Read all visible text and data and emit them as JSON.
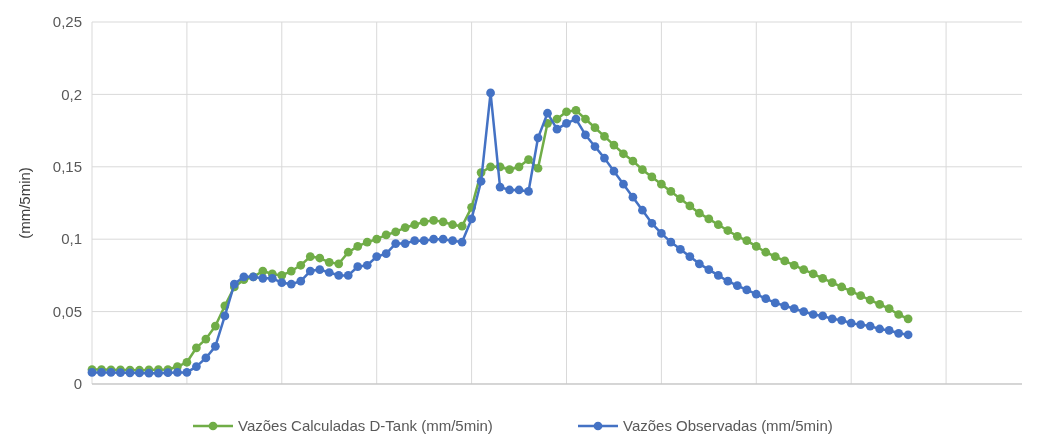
{
  "chart_data": {
    "type": "line",
    "ylabel": "(mm/5min)",
    "categories": [
      null,
      null,
      null,
      null,
      null,
      null,
      null,
      null,
      null,
      null,
      null,
      null,
      null,
      null,
      null,
      null,
      null,
      null,
      null,
      null,
      null,
      null,
      null,
      null,
      null,
      null,
      null,
      null,
      null,
      null,
      null,
      null,
      null,
      null,
      null,
      null,
      null,
      null,
      null,
      null,
      null,
      null,
      null,
      null,
      null,
      null,
      null,
      null,
      null,
      null,
      null,
      null,
      null,
      null,
      null,
      null,
      null,
      null,
      null,
      null,
      null,
      null,
      null,
      null,
      null,
      null,
      null,
      null,
      null,
      null,
      null,
      null,
      null,
      null,
      null,
      null,
      null,
      null,
      null,
      null,
      null,
      null,
      null,
      null,
      null,
      null,
      null,
      null,
      null,
      null,
      null,
      null,
      null,
      null,
      null,
      null,
      null,
      null
    ],
    "ylim": [
      0,
      0.25
    ],
    "yticks": [
      {
        "value": 0,
        "label": "0"
      },
      {
        "value": 0.05,
        "label": "0,05"
      },
      {
        "value": 0.1,
        "label": "0,1"
      },
      {
        "value": 0.15,
        "label": "0,15"
      },
      {
        "value": 0.2,
        "label": "0,2"
      },
      {
        "value": 0.25,
        "label": "0,25"
      }
    ],
    "grid": true,
    "legend": "bottom",
    "marker": "circle",
    "series": [
      {
        "name": "Vazões Calculadas D-Tank (mm/5min)",
        "color": "#70ad47",
        "values": [
          0.01,
          0.01,
          0.0098,
          0.0097,
          0.0096,
          0.0095,
          0.0097,
          0.0099,
          0.01,
          0.012,
          0.015,
          0.025,
          0.031,
          0.04,
          0.054,
          0.067,
          0.072,
          0.074,
          0.078,
          0.076,
          0.075,
          0.078,
          0.082,
          0.088,
          0.087,
          0.084,
          0.083,
          0.091,
          0.095,
          0.098,
          0.1,
          0.103,
          0.105,
          0.108,
          0.11,
          0.112,
          0.113,
          0.112,
          0.11,
          0.109,
          0.122,
          0.146,
          0.15,
          0.15,
          0.148,
          0.15,
          0.155,
          0.149,
          0.18,
          0.183,
          0.188,
          0.189,
          0.183,
          0.177,
          0.171,
          0.165,
          0.159,
          0.154,
          0.148,
          0.143,
          0.138,
          0.133,
          0.128,
          0.123,
          0.118,
          0.114,
          0.11,
          0.106,
          0.102,
          0.099,
          0.095,
          0.091,
          0.088,
          0.085,
          0.082,
          0.079,
          0.076,
          0.073,
          0.07,
          0.067,
          0.064,
          0.061,
          0.058,
          0.055,
          0.052,
          0.048,
          0.045,
          null,
          null,
          null,
          null,
          null,
          null,
          null,
          null,
          null,
          null,
          null
        ]
      },
      {
        "name": "Vazões Observadas (mm/5min)",
        "color": "#4472c4",
        "values": [
          0.008,
          0.008,
          0.008,
          0.0078,
          0.0077,
          0.0076,
          0.0075,
          0.0075,
          0.0078,
          0.008,
          0.008,
          0.012,
          0.018,
          0.026,
          0.047,
          0.069,
          0.074,
          0.074,
          0.073,
          0.073,
          0.07,
          0.069,
          0.071,
          0.078,
          0.079,
          0.077,
          0.075,
          0.075,
          0.081,
          0.082,
          0.088,
          0.09,
          0.097,
          0.097,
          0.099,
          0.099,
          0.1,
          0.1,
          0.099,
          0.098,
          0.114,
          0.14,
          0.201,
          0.136,
          0.134,
          0.134,
          0.133,
          0.17,
          0.187,
          0.176,
          0.18,
          0.183,
          0.172,
          0.164,
          0.156,
          0.147,
          0.138,
          0.129,
          0.12,
          0.111,
          0.104,
          0.098,
          0.093,
          0.088,
          0.083,
          0.079,
          0.075,
          0.071,
          0.068,
          0.065,
          0.062,
          0.059,
          0.056,
          0.054,
          0.052,
          0.05,
          0.048,
          0.047,
          0.045,
          0.044,
          0.042,
          0.041,
          0.04,
          0.038,
          0.037,
          0.035,
          0.034,
          null,
          null,
          null,
          null,
          null,
          null,
          null,
          null,
          null,
          null,
          null
        ]
      }
    ]
  }
}
